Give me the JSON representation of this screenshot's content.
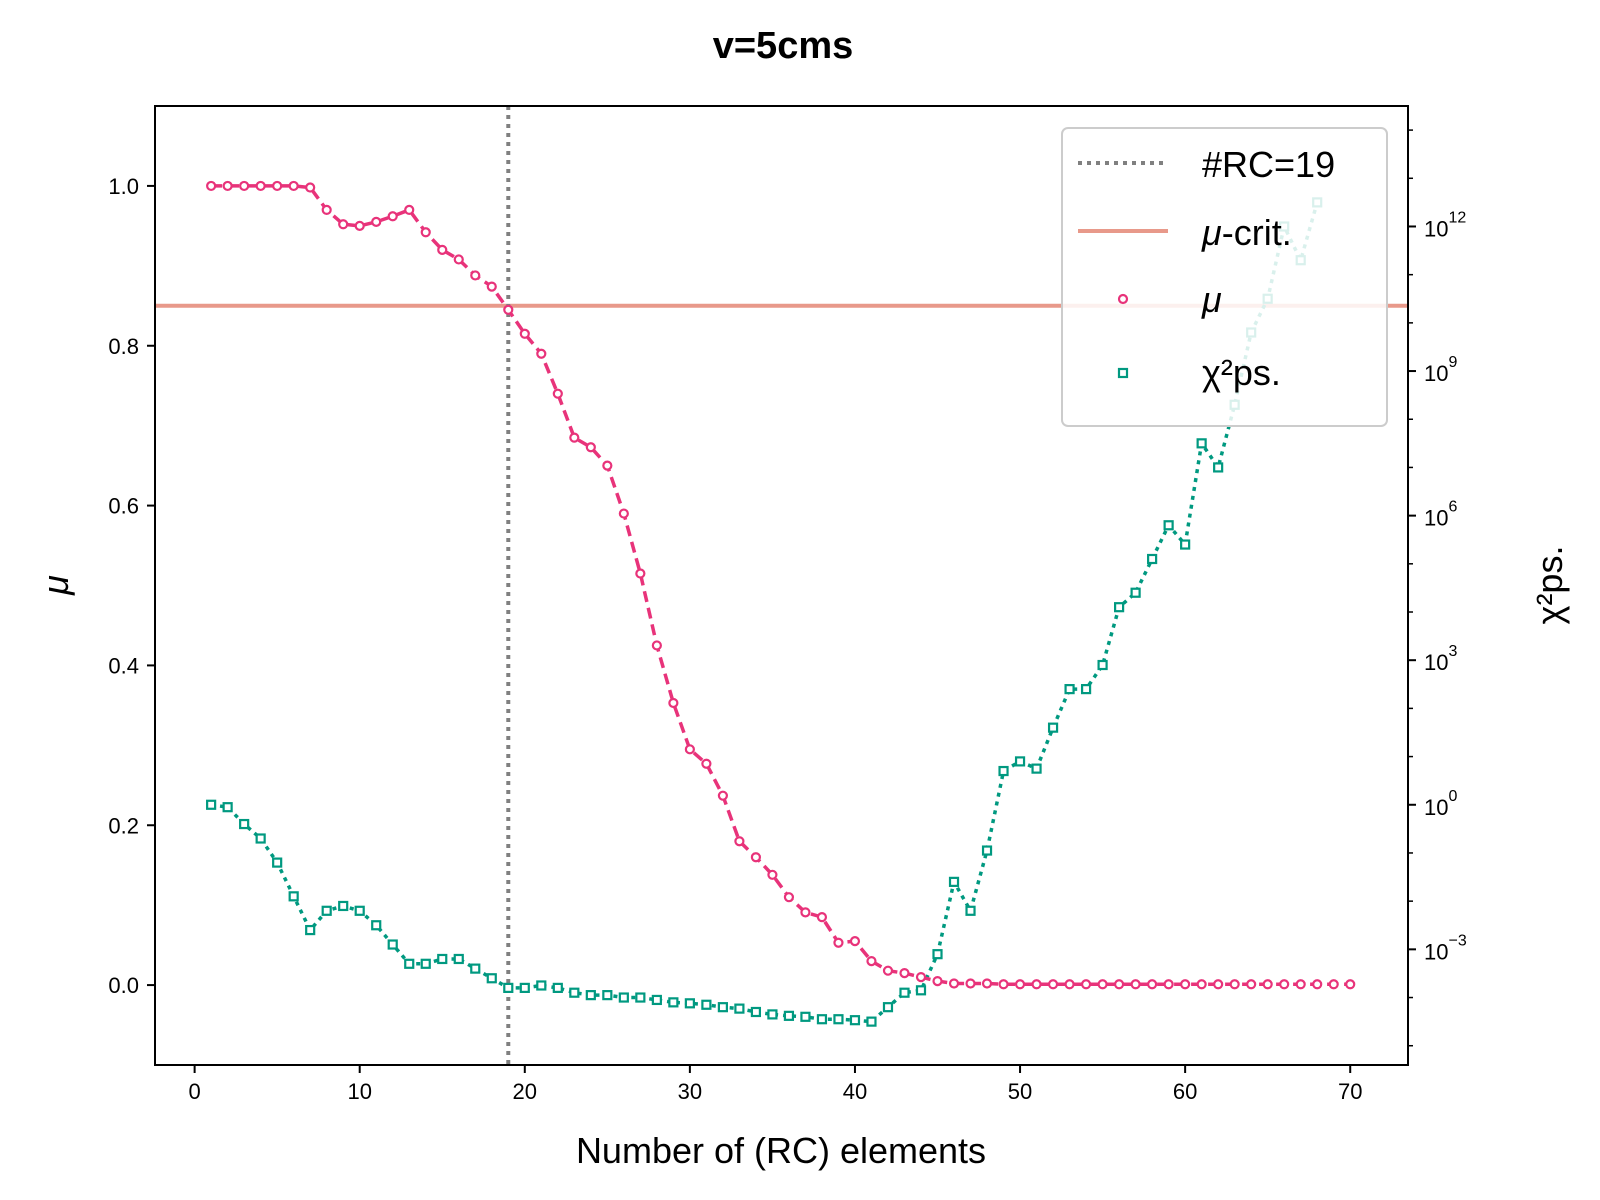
{
  "chart_data": {
    "type": "line",
    "title": "v=5cms",
    "xlabel": "Number of (RC) elements",
    "ylabel": "μ",
    "y2label": "χ²ps.",
    "xlim": [
      -2.4,
      73.5
    ],
    "ylim": [
      -0.1,
      1.1
    ],
    "y2_scale": "log",
    "y2lim_exp": [
      -5.4,
      14.5
    ],
    "x_ticks": [
      0,
      10,
      20,
      30,
      40,
      50,
      60,
      70
    ],
    "x_tick_labels": [
      "0",
      "10",
      "20",
      "30",
      "40",
      "50",
      "60",
      "70"
    ],
    "y_ticks": [
      0.0,
      0.2,
      0.4,
      0.6,
      0.8,
      1.0
    ],
    "y_tick_labels": [
      "0.0",
      "0.2",
      "0.4",
      "0.6",
      "0.8",
      "1.0"
    ],
    "y2_ticks": [
      {
        "exp": -3,
        "base": "10",
        "sup": "−3"
      },
      {
        "exp": 0,
        "base": "10",
        "sup": "0"
      },
      {
        "exp": 3,
        "base": "10",
        "sup": "3"
      },
      {
        "exp": 6,
        "base": "10",
        "sup": "6"
      },
      {
        "exp": 9,
        "base": "10",
        "sup": "9"
      },
      {
        "exp": 12,
        "base": "10",
        "sup": "12"
      }
    ],
    "legend_position": "top-right",
    "vline": {
      "x": 19,
      "label": "#RC=19",
      "color": "#808080"
    },
    "hline": {
      "y": 0.85,
      "label_base": "μ",
      "label_rest": "-crit.",
      "color": "#e8998a"
    },
    "series": [
      {
        "name": "μ",
        "axis": "left",
        "color": "#e8337a",
        "x": [
          1,
          2,
          3,
          4,
          5,
          6,
          7,
          8,
          9,
          10,
          11,
          12,
          13,
          14,
          15,
          16,
          17,
          18,
          19,
          20,
          21,
          22,
          23,
          24,
          25,
          26,
          27,
          28,
          29,
          30,
          31,
          32,
          33,
          34,
          35,
          36,
          37,
          38,
          39,
          40,
          41,
          42,
          43,
          44,
          45,
          46,
          47,
          48,
          49,
          50,
          51,
          52,
          53,
          54,
          55,
          56,
          57,
          58,
          59,
          60,
          61,
          62,
          63,
          64,
          65,
          66,
          67,
          68,
          69,
          70
        ],
        "values": [
          1.0,
          1.0,
          1.0,
          1.0,
          1.0,
          1.0,
          0.998,
          0.97,
          0.952,
          0.95,
          0.955,
          0.962,
          0.97,
          0.942,
          0.92,
          0.908,
          0.888,
          0.874,
          0.845,
          0.815,
          0.79,
          0.74,
          0.685,
          0.673,
          0.65,
          0.59,
          0.515,
          0.425,
          0.353,
          0.295,
          0.277,
          0.237,
          0.18,
          0.16,
          0.138,
          0.11,
          0.091,
          0.085,
          0.053,
          0.055,
          0.03,
          0.018,
          0.015,
          0.01,
          0.005,
          0.002,
          0.002,
          0.002,
          0.001,
          0.001,
          0.001,
          0.001,
          0.001,
          0.001,
          0.001,
          0.001,
          0.001,
          0.001,
          0.001,
          0.001,
          0.001,
          0.001,
          0.001,
          0.001,
          0.001,
          0.001,
          0.001,
          0.001,
          0.001,
          0.001
        ]
      },
      {
        "name": "χ²ps.",
        "axis": "right",
        "color": "#009980",
        "x": [
          1,
          2,
          3,
          4,
          5,
          6,
          7,
          8,
          9,
          10,
          11,
          12,
          13,
          14,
          15,
          16,
          17,
          18,
          19,
          20,
          21,
          22,
          23,
          24,
          25,
          26,
          27,
          28,
          29,
          30,
          31,
          32,
          33,
          34,
          35,
          36,
          37,
          38,
          39,
          40,
          41,
          42,
          43,
          44,
          45,
          46,
          47,
          48,
          49,
          50,
          51,
          52,
          53,
          54,
          55,
          56,
          57,
          58,
          59,
          60,
          61,
          62,
          63,
          64,
          65,
          66,
          67,
          68
        ],
        "exp_values": [
          0.0,
          -0.05,
          -0.4,
          -0.7,
          -1.2,
          -1.9,
          -2.6,
          -2.2,
          -2.1,
          -2.2,
          -2.5,
          -2.9,
          -3.3,
          -3.3,
          -3.2,
          -3.2,
          -3.4,
          -3.6,
          -3.8,
          -3.8,
          -3.75,
          -3.8,
          -3.9,
          -3.95,
          -3.95,
          -4.0,
          -4.0,
          -4.05,
          -4.1,
          -4.12,
          -4.15,
          -4.2,
          -4.23,
          -4.3,
          -4.35,
          -4.38,
          -4.4,
          -4.45,
          -4.45,
          -4.47,
          -4.5,
          -4.2,
          -3.9,
          -3.85,
          -3.1,
          -1.6,
          -2.2,
          -0.95,
          0.7,
          0.9,
          0.75,
          1.6,
          2.4,
          2.4,
          2.9,
          4.1,
          4.4,
          5.1,
          5.8,
          5.4,
          7.5,
          7.0,
          8.3,
          9.8,
          10.5,
          12.0,
          11.3,
          12.5
        ]
      }
    ]
  }
}
